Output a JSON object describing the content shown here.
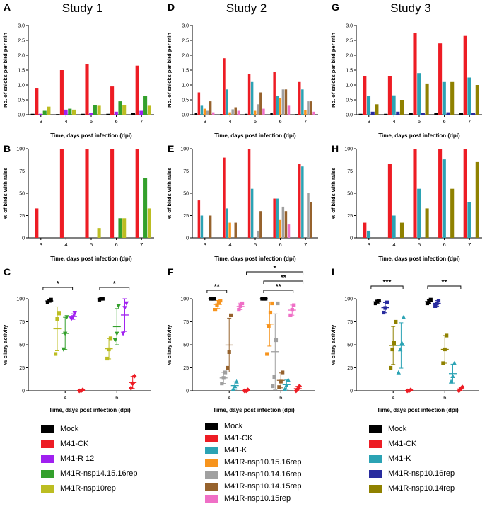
{
  "header": {
    "study_titles": [
      "Study 1",
      "Study 2",
      "Study 3"
    ]
  },
  "legends": [
    [
      {
        "label": "Mock",
        "color": "#000000"
      },
      {
        "label": "M41-CK",
        "color": "#ed1c24"
      },
      {
        "label": "M41-R 12",
        "color": "#a020f0"
      },
      {
        "label": "M41R-nsp14.15.16rep",
        "color": "#33a02c"
      },
      {
        "label": "M41R-nsp10rep",
        "color": "#bcbd22"
      }
    ],
    [
      {
        "label": "Mock",
        "color": "#000000"
      },
      {
        "label": "M41-CK",
        "color": "#ed1c24"
      },
      {
        "label": "M41-K",
        "color": "#2ba3b4"
      },
      {
        "label": "M41R-nsp10.15.16rep",
        "color": "#f7941d"
      },
      {
        "label": "M41R-nsp10.14.16rep",
        "color": "#a0a0a0"
      },
      {
        "label": "M41R-nsp10.14.15rep",
        "color": "#96622d"
      },
      {
        "label": "M41R-nsp10.15rep",
        "color": "#ef6fc6"
      }
    ],
    [
      {
        "label": "Mock",
        "color": "#000000"
      },
      {
        "label": "M41-CK",
        "color": "#ed1c24"
      },
      {
        "label": "M41-K",
        "color": "#2ba3b4"
      },
      {
        "label": "M41R-nsp10.16rep",
        "color": "#282b9e"
      },
      {
        "label": "M41R-nsp10.14rep",
        "color": "#8f8100"
      }
    ]
  ],
  "chart_data": [
    {
      "panel": "A",
      "study": "Study 1",
      "type": "bar",
      "xlabel": "Time, days post infection (dpi)",
      "ylabel": "No. of snicks per bird per min",
      "ylim": [
        0,
        3
      ],
      "yticks": [
        0,
        0.5,
        1,
        1.5,
        2,
        2.5,
        3
      ],
      "ydec": 1,
      "categories": [
        "3",
        "4",
        "5",
        "6",
        "7"
      ],
      "series": [
        {
          "name": "Mock",
          "color": "#000000",
          "values": [
            0.03,
            0.02,
            0.03,
            0.03,
            0.05
          ]
        },
        {
          "name": "M41-CK",
          "color": "#ed1c24",
          "values": [
            0.88,
            1.5,
            1.7,
            0.95,
            1.65
          ]
        },
        {
          "name": "M41-R 12",
          "color": "#a020f0",
          "values": [
            0.03,
            0.17,
            0.05,
            0.1,
            0.13
          ]
        },
        {
          "name": "M41R-nsp14.15.16rep",
          "color": "#33a02c",
          "values": [
            0.13,
            0.2,
            0.32,
            0.45,
            0.62
          ]
        },
        {
          "name": "M41R-nsp10rep",
          "color": "#bcbd22",
          "values": [
            0.27,
            0.17,
            0.3,
            0.33,
            0.3
          ]
        }
      ]
    },
    {
      "panel": "B",
      "study": "Study 1",
      "type": "bar",
      "xlabel": "Time, days post infection (dpi)",
      "ylabel": "% of birds with rales",
      "ylim": [
        0,
        100
      ],
      "yticks": [
        0,
        25,
        50,
        75,
        100
      ],
      "ydec": 0,
      "categories": [
        "3",
        "4",
        "5",
        "6",
        "7"
      ],
      "series": [
        {
          "name": "Mock",
          "color": "#000000",
          "values": [
            0,
            0,
            0,
            0,
            0
          ]
        },
        {
          "name": "M41-CK",
          "color": "#ed1c24",
          "values": [
            33,
            100,
            100,
            100,
            100
          ]
        },
        {
          "name": "M41-R 12",
          "color": "#a020f0",
          "values": [
            0,
            0,
            0,
            0,
            0
          ]
        },
        {
          "name": "M41R-nsp14.15.16rep",
          "color": "#33a02c",
          "values": [
            0,
            0,
            0,
            22,
            67
          ]
        },
        {
          "name": "M41R-nsp10rep",
          "color": "#bcbd22",
          "values": [
            0,
            0,
            11,
            22,
            33
          ]
        }
      ]
    },
    {
      "panel": "C",
      "study": "Study 1",
      "type": "scatter",
      "xlabel": "Time, days post infection (dpi)",
      "ylabel": "% cilary activity",
      "ylim": [
        0,
        100
      ],
      "yticks": [
        0,
        25,
        50,
        75,
        100
      ],
      "ydec": 0,
      "categories": [
        "4",
        "6"
      ],
      "series": [
        {
          "name": "Mock",
          "color": "#000000",
          "marker": "square",
          "points": [
            [
              96,
              98,
              99
            ],
            [
              99,
              100,
              100
            ]
          ]
        },
        {
          "name": "M41R-nsp10rep",
          "color": "#bcbd22",
          "marker": "square",
          "points": [
            [
              40,
              78,
              84
            ],
            [
              35,
              45,
              57
            ]
          ]
        },
        {
          "name": "M41R-nsp14.15.16rep",
          "color": "#33a02c",
          "marker": "tri-down",
          "points": [
            [
              45,
              62,
              80
            ],
            [
              55,
              62,
              92
            ]
          ]
        },
        {
          "name": "M41-R 12",
          "color": "#a020f0",
          "marker": "tri-down",
          "points": [
            [
              78,
              80,
              84
            ],
            [
              62,
              90,
              95
            ]
          ]
        },
        {
          "name": "M41-CK",
          "color": "#ed1c24",
          "marker": "diamond",
          "points": [
            [
              0,
              0,
              1
            ],
            [
              3,
              8,
              16
            ]
          ]
        }
      ],
      "annotations": [
        {
          "x1": 0.12,
          "x2": 0.36,
          "y": 30,
          "label": "*"
        },
        {
          "x1": 0.58,
          "x2": 0.82,
          "y": 30,
          "label": "*"
        }
      ]
    },
    {
      "panel": "D",
      "study": "Study 2",
      "type": "bar",
      "xlabel": "Time, days post infection (dpi)",
      "ylabel": "No. of snicks per bird per min",
      "ylim": [
        0,
        3
      ],
      "yticks": [
        0,
        0.5,
        1,
        1.5,
        2,
        2.5,
        3
      ],
      "ydec": 1,
      "categories": [
        "3",
        "4",
        "5",
        "6",
        "7"
      ],
      "series": [
        {
          "name": "Mock",
          "color": "#000000",
          "values": [
            0.07,
            0.02,
            0.03,
            0.05,
            0.02
          ]
        },
        {
          "name": "M41-CK",
          "color": "#ed1c24",
          "values": [
            0.75,
            1.9,
            1.38,
            1.45,
            1.1
          ]
        },
        {
          "name": "M41-K",
          "color": "#2ba3b4",
          "values": [
            0.3,
            0.85,
            1.1,
            0.62,
            0.85
          ]
        },
        {
          "name": "M41R-nsp10.15.16rep",
          "color": "#f7941d",
          "values": [
            0.2,
            0.08,
            0.13,
            0.55,
            0.15
          ]
        },
        {
          "name": "M41R-nsp10.14.16rep",
          "color": "#a0a0a0",
          "values": [
            0.13,
            0.18,
            0.35,
            0.85,
            0.45
          ]
        },
        {
          "name": "M41R-nsp10.14.15rep",
          "color": "#96622d",
          "values": [
            0.45,
            0.25,
            0.75,
            0.85,
            0.45
          ]
        },
        {
          "name": "M41R-nsp10.15rep",
          "color": "#ef6fc6",
          "values": [
            0.08,
            0.13,
            0.2,
            0.3,
            0.1
          ]
        }
      ]
    },
    {
      "panel": "E",
      "study": "Study 2",
      "type": "bar",
      "xlabel": "Time, days post infection (dpi)",
      "ylabel": "% of birds with rales",
      "ylim": [
        0,
        100
      ],
      "yticks": [
        0,
        25,
        50,
        75,
        100
      ],
      "ydec": 0,
      "categories": [
        "3",
        "4",
        "5",
        "6",
        "7"
      ],
      "series": [
        {
          "name": "Mock",
          "color": "#000000",
          "values": [
            0,
            0,
            0,
            0,
            0
          ]
        },
        {
          "name": "M41-CK",
          "color": "#ed1c24",
          "values": [
            42,
            90,
            100,
            44,
            83
          ]
        },
        {
          "name": "M41-K",
          "color": "#2ba3b4",
          "values": [
            25,
            33,
            55,
            44,
            80
          ]
        },
        {
          "name": "M41R-nsp10.15.16rep",
          "color": "#f7941d",
          "values": [
            0,
            17,
            0,
            20,
            0
          ]
        },
        {
          "name": "M41R-nsp10.14.16rep",
          "color": "#a0a0a0",
          "values": [
            0,
            0,
            8,
            35,
            50
          ]
        },
        {
          "name": "M41R-nsp10.14.15rep",
          "color": "#96622d",
          "values": [
            25,
            17,
            30,
            30,
            40
          ]
        },
        {
          "name": "M41R-nsp10.15rep",
          "color": "#ef6fc6",
          "values": [
            0,
            0,
            0,
            15,
            0
          ]
        }
      ]
    },
    {
      "panel": "F",
      "study": "Study 2",
      "type": "scatter",
      "xlabel": "Time, days post infection (dpi)",
      "ylabel": "% cilary activity",
      "ylim": [
        0,
        100
      ],
      "yticks": [
        0,
        25,
        50,
        75,
        100
      ],
      "ydec": 0,
      "categories": [
        "4",
        "6"
      ],
      "series": [
        {
          "name": "Mock",
          "color": "#000000",
          "marker": "square",
          "points": [
            [
              100,
              100,
              100
            ],
            [
              100,
              100,
              100
            ]
          ]
        },
        {
          "name": "M41R-nsp10.15.16rep",
          "color": "#f7941d",
          "marker": "square",
          "points": [
            [
              88,
              93,
              96,
              98
            ],
            [
              40,
              70,
              85,
              95
            ]
          ]
        },
        {
          "name": "M41R-nsp10.14.16rep",
          "color": "#a0a0a0",
          "marker": "square",
          "points": [
            [
              8,
              14,
              20
            ],
            [
              5,
              15,
              55,
              95
            ]
          ]
        },
        {
          "name": "M41R-nsp10.14.15rep",
          "color": "#96622d",
          "marker": "square",
          "points": [
            [
              25,
              42,
              82
            ],
            [
              4,
              10,
              20
            ]
          ]
        },
        {
          "name": "M41-K",
          "color": "#2ba3b4",
          "marker": "triangle",
          "points": [
            [
              2,
              5,
              10
            ],
            [
              2,
              6,
              12
            ]
          ]
        },
        {
          "name": "M41R-nsp10.15rep",
          "color": "#ef6fc6",
          "marker": "square",
          "points": [
            [
              88,
              92,
              95
            ],
            [
              82,
              88,
              93
            ]
          ]
        },
        {
          "name": "M41-CK",
          "color": "#ed1c24",
          "marker": "diamond",
          "points": [
            [
              0,
              0,
              1
            ],
            [
              0,
              2,
              5
            ]
          ]
        }
      ],
      "annotations": [
        {
          "x1": 0.12,
          "x2": 0.28,
          "y": 34,
          "label": "**"
        },
        {
          "x1": 0.44,
          "x2": 0.9,
          "y": 8,
          "label": "*"
        },
        {
          "x1": 0.58,
          "x2": 0.9,
          "y": 21,
          "label": "**"
        },
        {
          "x1": 0.58,
          "x2": 0.82,
          "y": 34,
          "label": "**"
        }
      ]
    },
    {
      "panel": "G",
      "study": "Study 3",
      "type": "bar",
      "xlabel": "Time, days post infection (dpi)",
      "ylabel": "No. of snicks per bird per min",
      "ylim": [
        0,
        3
      ],
      "yticks": [
        0,
        0.5,
        1,
        1.5,
        2,
        2.5,
        3
      ],
      "ydec": 1,
      "categories": [
        "3",
        "4",
        "5",
        "6",
        "7"
      ],
      "series": [
        {
          "name": "Mock",
          "color": "#000000",
          "values": [
            0.03,
            0.03,
            0.05,
            0.05,
            0.05
          ]
        },
        {
          "name": "M41-CK",
          "color": "#ed1c24",
          "values": [
            1.3,
            1.3,
            2.75,
            2.4,
            2.65
          ]
        },
        {
          "name": "M41-K",
          "color": "#2ba3b4",
          "values": [
            0.62,
            0.65,
            1.4,
            1.1,
            1.25
          ]
        },
        {
          "name": "M41R-nsp10.16rep",
          "color": "#282b9e",
          "values": [
            0.1,
            0.1,
            0.05,
            0.08,
            0.05
          ]
        },
        {
          "name": "M41R-nsp10.14rep",
          "color": "#8f8100",
          "values": [
            0.35,
            0.5,
            1.05,
            1.1,
            1.0
          ]
        }
      ]
    },
    {
      "panel": "H",
      "study": "Study 3",
      "type": "bar",
      "xlabel": "Time, days post infection (dpi)",
      "ylabel": "% of birds with rales",
      "ylim": [
        0,
        100
      ],
      "yticks": [
        0,
        25,
        50,
        75,
        100
      ],
      "ydec": 0,
      "categories": [
        "3",
        "4",
        "5",
        "6",
        "7"
      ],
      "series": [
        {
          "name": "Mock",
          "color": "#000000",
          "values": [
            0,
            0,
            0,
            0,
            0
          ]
        },
        {
          "name": "M41-CK",
          "color": "#ed1c24",
          "values": [
            17,
            83,
            100,
            100,
            100
          ]
        },
        {
          "name": "M41-K",
          "color": "#2ba3b4",
          "values": [
            8,
            25,
            55,
            88,
            40
          ]
        },
        {
          "name": "M41R-nsp10.16rep",
          "color": "#282b9e",
          "values": [
            0,
            0,
            0,
            0,
            0
          ]
        },
        {
          "name": "M41R-nsp10.14rep",
          "color": "#8f8100",
          "values": [
            0,
            17,
            33,
            55,
            85
          ]
        }
      ]
    },
    {
      "panel": "I",
      "study": "Study 3",
      "type": "scatter",
      "xlabel": "Time, days post infection (dpi)",
      "ylabel": "% cilary activity",
      "ylim": [
        0,
        100
      ],
      "yticks": [
        0,
        25,
        50,
        75,
        100
      ],
      "ydec": 0,
      "categories": [
        "4",
        "6"
      ],
      "series": [
        {
          "name": "Mock",
          "color": "#000000",
          "marker": "square",
          "points": [
            [
              95,
              97,
              98
            ],
            [
              95,
              97,
              99
            ]
          ]
        },
        {
          "name": "M41R-nsp10.16rep",
          "color": "#282b9e",
          "marker": "square",
          "points": [
            [
              85,
              90,
              96
            ],
            [
              92,
              95,
              98
            ]
          ]
        },
        {
          "name": "M41R-nsp10.14rep",
          "color": "#8f8100",
          "marker": "square",
          "points": [
            [
              25,
              45,
              52,
              75
            ],
            [
              30,
              45,
              60
            ]
          ]
        },
        {
          "name": "M41-K",
          "color": "#2ba3b4",
          "marker": "triangle",
          "points": [
            [
              20,
              45,
              52,
              80
            ],
            [
              10,
              16,
              30
            ]
          ]
        },
        {
          "name": "M41-CK",
          "color": "#ed1c24",
          "marker": "diamond",
          "points": [
            [
              0,
              0,
              1
            ],
            [
              0,
              2,
              4
            ]
          ]
        }
      ],
      "annotations": [
        {
          "x1": 0.12,
          "x2": 0.38,
          "y": 28,
          "label": "***"
        },
        {
          "x1": 0.58,
          "x2": 0.85,
          "y": 28,
          "label": "**"
        }
      ]
    }
  ]
}
